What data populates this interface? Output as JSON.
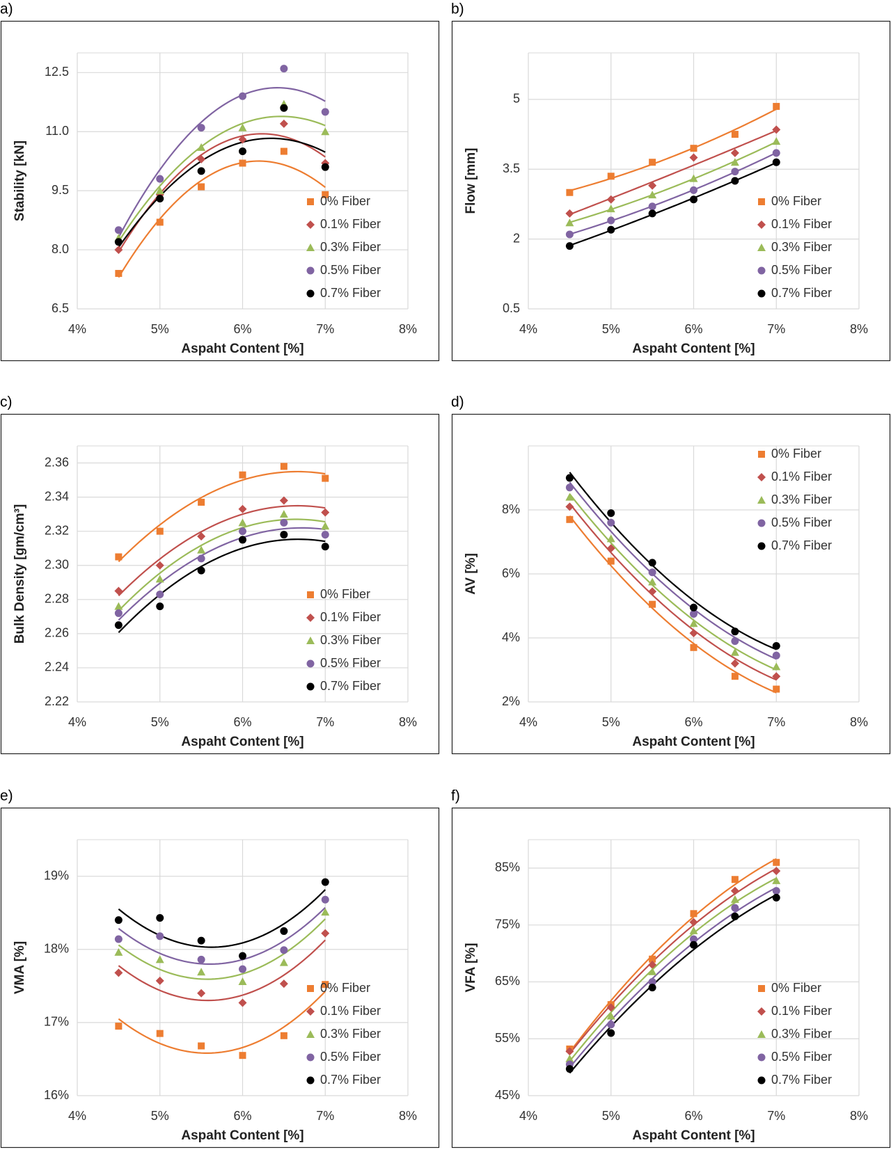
{
  "chart_data": [
    {
      "type": "scatter",
      "panel_label": "a)",
      "x_label": "Aspaht Content [%]",
      "y_label": "Stability [kN]",
      "x": [
        4.5,
        5,
        5.5,
        6,
        6.5,
        7
      ],
      "xlim": [
        4,
        8
      ],
      "xticks": [
        {
          "value": 4,
          "label": "4%"
        },
        {
          "value": 5,
          "label": "5%"
        },
        {
          "value": 6,
          "label": "6%"
        },
        {
          "value": 7,
          "label": "7%"
        },
        {
          "value": 8,
          "label": "8%"
        }
      ],
      "ylim": [
        6.5,
        13
      ],
      "yticks": [
        6.5,
        {
          "value": 8,
          "label": "8.0"
        },
        9.5,
        {
          "value": 11,
          "label": "11.0"
        },
        12.5
      ],
      "grid": true,
      "trendline": "polynomial",
      "trendline_order": 2,
      "legend_position": "lower right",
      "series": [
        {
          "name": "0% Fiber",
          "color": "#ed7d31",
          "marker": "square",
          "values": [
            7.4,
            8.7,
            9.6,
            10.2,
            10.5,
            9.4
          ]
        },
        {
          "name": "0.1% Fiber",
          "color": "#c0504d",
          "marker": "diamond",
          "values": [
            8.0,
            9.4,
            10.3,
            10.8,
            11.2,
            10.2
          ]
        },
        {
          "name": "0.3% Fiber",
          "color": "#9bbb59",
          "marker": "triangle",
          "values": [
            8.3,
            9.5,
            10.6,
            11.1,
            11.7,
            11.0
          ]
        },
        {
          "name": "0.5% Fiber",
          "color": "#8064a2",
          "marker": "circle",
          "values": [
            8.5,
            9.8,
            11.1,
            11.9,
            12.6,
            11.5
          ]
        },
        {
          "name": "0.7% Fiber",
          "color": "#000000",
          "marker": "circle",
          "values": [
            8.2,
            9.3,
            10.0,
            10.5,
            11.6,
            10.1
          ]
        }
      ]
    },
    {
      "type": "scatter",
      "panel_label": "b)",
      "x_label": "Aspaht Content [%]",
      "y_label": "Flow [mm]",
      "x": [
        4.5,
        5,
        5.5,
        6,
        6.5,
        7
      ],
      "xlim": [
        4,
        8
      ],
      "xticks": [
        {
          "value": 4,
          "label": "4%"
        },
        {
          "value": 5,
          "label": "5%"
        },
        {
          "value": 6,
          "label": "6%"
        },
        {
          "value": 7,
          "label": "7%"
        },
        {
          "value": 8,
          "label": "8%"
        }
      ],
      "ylim": [
        0.5,
        6
      ],
      "yticks": [
        0.5,
        2,
        3.5,
        5
      ],
      "grid": true,
      "trendline": "polynomial",
      "trendline_order": 2,
      "legend_position": "lower right",
      "series": [
        {
          "name": "0% Fiber",
          "color": "#ed7d31",
          "marker": "square",
          "values": [
            3.0,
            3.35,
            3.65,
            3.95,
            4.25,
            4.85
          ]
        },
        {
          "name": "0.1% Fiber",
          "color": "#c0504d",
          "marker": "diamond",
          "values": [
            2.55,
            2.85,
            3.15,
            3.75,
            3.85,
            4.35
          ]
        },
        {
          "name": "0.3% Fiber",
          "color": "#9bbb59",
          "marker": "triangle",
          "values": [
            2.35,
            2.65,
            2.95,
            3.3,
            3.65,
            4.1
          ]
        },
        {
          "name": "0.5% Fiber",
          "color": "#8064a2",
          "marker": "circle",
          "values": [
            2.1,
            2.4,
            2.7,
            3.05,
            3.45,
            3.85
          ]
        },
        {
          "name": "0.7% Fiber",
          "color": "#000000",
          "marker": "circle",
          "values": [
            1.85,
            2.2,
            2.55,
            2.85,
            3.25,
            3.65
          ]
        }
      ]
    },
    {
      "type": "scatter",
      "panel_label": "c)",
      "x_label": "Aspaht Content [%]",
      "y_label": "Bulk Density [gm/cm³]",
      "x": [
        4.5,
        5,
        5.5,
        6,
        6.5,
        7
      ],
      "xlim": [
        4,
        8
      ],
      "xticks": [
        {
          "value": 4,
          "label": "4%"
        },
        {
          "value": 5,
          "label": "5%"
        },
        {
          "value": 6,
          "label": "6%"
        },
        {
          "value": 7,
          "label": "7%"
        },
        {
          "value": 8,
          "label": "8%"
        }
      ],
      "ylim": [
        2.22,
        2.37
      ],
      "yticks": [
        2.22,
        2.24,
        2.26,
        2.28,
        {
          "value": 2.3,
          "label": "2.30"
        },
        2.32,
        2.34,
        2.36
      ],
      "grid": true,
      "trendline": "polynomial",
      "trendline_order": 2,
      "legend_position": "lower right",
      "series": [
        {
          "name": "0% Fiber",
          "color": "#ed7d31",
          "marker": "square",
          "values": [
            2.305,
            2.32,
            2.337,
            2.353,
            2.358,
            2.351
          ]
        },
        {
          "name": "0.1% Fiber",
          "color": "#c0504d",
          "marker": "diamond",
          "values": [
            2.285,
            2.3,
            2.317,
            2.333,
            2.338,
            2.331
          ]
        },
        {
          "name": "0.3% Fiber",
          "color": "#9bbb59",
          "marker": "triangle",
          "values": [
            2.276,
            2.292,
            2.309,
            2.325,
            2.33,
            2.323
          ]
        },
        {
          "name": "0.5% Fiber",
          "color": "#8064a2",
          "marker": "circle",
          "values": [
            2.272,
            2.283,
            2.304,
            2.32,
            2.325,
            2.318
          ]
        },
        {
          "name": "0.7% Fiber",
          "color": "#000000",
          "marker": "circle",
          "values": [
            2.265,
            2.276,
            2.297,
            2.315,
            2.318,
            2.311
          ]
        }
      ]
    },
    {
      "type": "scatter",
      "panel_label": "d)",
      "x_label": "Aspaht Content [%]",
      "y_label": "AV [%]",
      "x": [
        4.5,
        5,
        5.5,
        6,
        6.5,
        7
      ],
      "xlim": [
        4,
        8
      ],
      "xticks": [
        {
          "value": 4,
          "label": "4%"
        },
        {
          "value": 5,
          "label": "5%"
        },
        {
          "value": 6,
          "label": "6%"
        },
        {
          "value": 7,
          "label": "7%"
        },
        {
          "value": 8,
          "label": "8%"
        }
      ],
      "ylim": [
        2,
        10
      ],
      "yticks": [
        {
          "value": 2,
          "label": "2%"
        },
        {
          "value": 4,
          "label": "4%"
        },
        {
          "value": 6,
          "label": "6%"
        },
        {
          "value": 8,
          "label": "8%"
        }
      ],
      "grid": true,
      "trendline": "polynomial",
      "trendline_order": 2,
      "legend_position": "upper right",
      "series": [
        {
          "name": "0% Fiber",
          "color": "#ed7d31",
          "marker": "square",
          "values": [
            7.7,
            6.4,
            5.05,
            3.7,
            2.8,
            2.4
          ]
        },
        {
          "name": "0.1% Fiber",
          "color": "#c0504d",
          "marker": "diamond",
          "values": [
            8.1,
            6.8,
            5.45,
            4.15,
            3.2,
            2.8
          ]
        },
        {
          "name": "0.3% Fiber",
          "color": "#9bbb59",
          "marker": "triangle",
          "values": [
            8.4,
            7.1,
            5.75,
            4.45,
            3.55,
            3.1
          ]
        },
        {
          "name": "0.5% Fiber",
          "color": "#8064a2",
          "marker": "circle",
          "values": [
            8.7,
            7.6,
            6.05,
            4.75,
            3.9,
            3.45
          ]
        },
        {
          "name": "0.7% Fiber",
          "color": "#000000",
          "marker": "circle",
          "values": [
            9.0,
            7.9,
            6.35,
            4.95,
            4.2,
            3.75
          ]
        }
      ]
    },
    {
      "type": "scatter",
      "panel_label": "e)",
      "x_label": "Aspaht Content [%]",
      "y_label": "VMA [%]",
      "x": [
        4.5,
        5,
        5.5,
        6,
        6.5,
        7
      ],
      "xlim": [
        4,
        8
      ],
      "xticks": [
        {
          "value": 4,
          "label": "4%"
        },
        {
          "value": 5,
          "label": "5%"
        },
        {
          "value": 6,
          "label": "6%"
        },
        {
          "value": 7,
          "label": "7%"
        },
        {
          "value": 8,
          "label": "8%"
        }
      ],
      "ylim": [
        16,
        19.5
      ],
      "yticks": [
        {
          "value": 16,
          "label": "16%"
        },
        {
          "value": 17,
          "label": "17%"
        },
        {
          "value": 18,
          "label": "18%"
        },
        {
          "value": 19,
          "label": "19%"
        }
      ],
      "grid": true,
      "trendline": "polynomial",
      "trendline_order": 2,
      "legend_position": "lower right",
      "series": [
        {
          "name": "0% Fiber",
          "color": "#ed7d31",
          "marker": "square",
          "values": [
            16.95,
            16.85,
            16.68,
            16.55,
            16.82,
            17.52
          ]
        },
        {
          "name": "0.1% Fiber",
          "color": "#c0504d",
          "marker": "diamond",
          "values": [
            17.68,
            17.57,
            17.4,
            17.27,
            17.53,
            18.22
          ]
        },
        {
          "name": "0.3% Fiber",
          "color": "#9bbb59",
          "marker": "triangle",
          "values": [
            17.96,
            17.86,
            17.69,
            17.56,
            17.82,
            18.51
          ]
        },
        {
          "name": "0.5% Fiber",
          "color": "#8064a2",
          "marker": "circle",
          "values": [
            18.14,
            18.18,
            17.86,
            17.73,
            17.99,
            18.68
          ]
        },
        {
          "name": "0.7% Fiber",
          "color": "#000000",
          "marker": "circle",
          "values": [
            18.4,
            18.43,
            18.12,
            17.91,
            18.25,
            18.92
          ]
        }
      ]
    },
    {
      "type": "scatter",
      "panel_label": "f)",
      "x_label": "Aspaht Content [%]",
      "y_label": "VFA [%]",
      "x": [
        4.5,
        5,
        5.5,
        6,
        6.5,
        7
      ],
      "xlim": [
        4,
        8
      ],
      "xticks": [
        {
          "value": 4,
          "label": "4%"
        },
        {
          "value": 5,
          "label": "5%"
        },
        {
          "value": 6,
          "label": "6%"
        },
        {
          "value": 7,
          "label": "7%"
        },
        {
          "value": 8,
          "label": "8%"
        }
      ],
      "ylim": [
        45,
        90
      ],
      "yticks": [
        {
          "value": 45,
          "label": "45%"
        },
        {
          "value": 55,
          "label": "55%"
        },
        {
          "value": 65,
          "label": "65%"
        },
        {
          "value": 75,
          "label": "75%"
        },
        {
          "value": 85,
          "label": "85%"
        }
      ],
      "grid": true,
      "trendline": "polynomial",
      "trendline_order": 2,
      "legend_position": "lower right",
      "series": [
        {
          "name": "0% Fiber",
          "color": "#ed7d31",
          "marker": "square",
          "values": [
            53.2,
            61.0,
            69.0,
            77.0,
            83.0,
            86.0
          ]
        },
        {
          "name": "0.1% Fiber",
          "color": "#c0504d",
          "marker": "diamond",
          "values": [
            52.8,
            60.5,
            68.0,
            75.5,
            81.0,
            84.5
          ]
        },
        {
          "name": "0.3% Fiber",
          "color": "#9bbb59",
          "marker": "triangle",
          "values": [
            51.5,
            59.0,
            66.8,
            74.0,
            79.5,
            82.8
          ]
        },
        {
          "name": "0.5% Fiber",
          "color": "#8064a2",
          "marker": "circle",
          "values": [
            50.5,
            57.5,
            65.0,
            72.5,
            78.0,
            81.0
          ]
        },
        {
          "name": "0.7% Fiber",
          "color": "#000000",
          "marker": "circle",
          "values": [
            49.7,
            56.0,
            64.0,
            71.5,
            76.5,
            79.8
          ]
        }
      ]
    }
  ]
}
